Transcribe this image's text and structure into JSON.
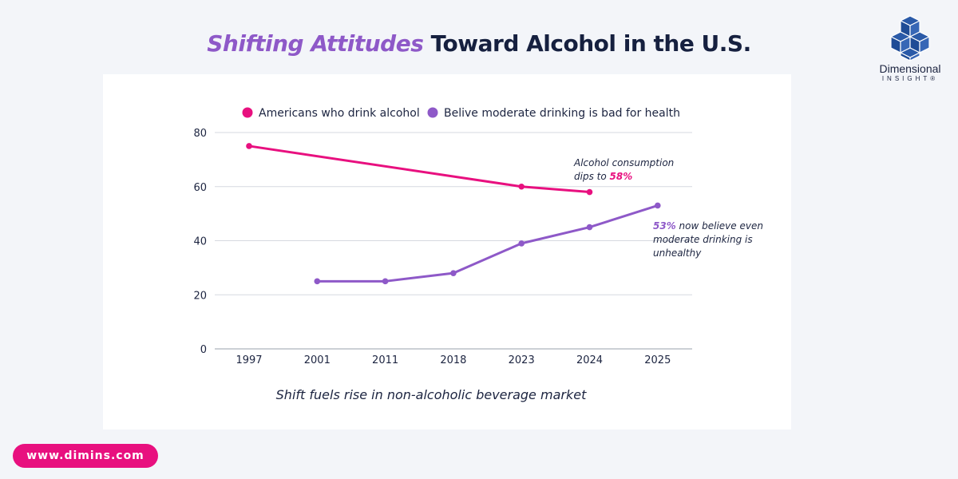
{
  "header": {
    "title_accent": "Shifting Attitudes",
    "title_rest": "Toward Alcohol in the U.S."
  },
  "logo": {
    "name": "Dimensional",
    "sub": "INSIGHT®"
  },
  "footer": {
    "url": "www.dimins.com"
  },
  "colors": {
    "pink": "#e8107f",
    "purple": "#8e59c8",
    "text": "#1c2440",
    "grid": "#d6d9e0"
  },
  "chart_data": {
    "type": "line",
    "categories": [
      "1997",
      "2001",
      "2011",
      "2018",
      "2023",
      "2024",
      "2025"
    ],
    "ylim": [
      0,
      80
    ],
    "yticks": [
      0,
      20,
      40,
      60,
      80
    ],
    "legend_position": "top",
    "grid": true,
    "series": [
      {
        "name": "Americans who drink alcohol",
        "color": "#e8107f",
        "values": [
          75,
          null,
          null,
          null,
          60,
          58,
          null
        ]
      },
      {
        "name": "Belive moderate drinking is bad for health",
        "color": "#8e59c8",
        "values": [
          null,
          25,
          25,
          28,
          39,
          45,
          53
        ]
      }
    ],
    "annotations": [
      {
        "lines": [
          "Alcohol consumption",
          "dips to "
        ],
        "highlight": "58%",
        "color": "#e8107f"
      },
      {
        "highlight": "53%",
        "lines": [
          " now believe even",
          "moderate drinking is",
          "unhealthy"
        ],
        "color": "#8e59c8"
      }
    ],
    "caption": "Shift fuels rise in non-alcoholic beverage market"
  }
}
